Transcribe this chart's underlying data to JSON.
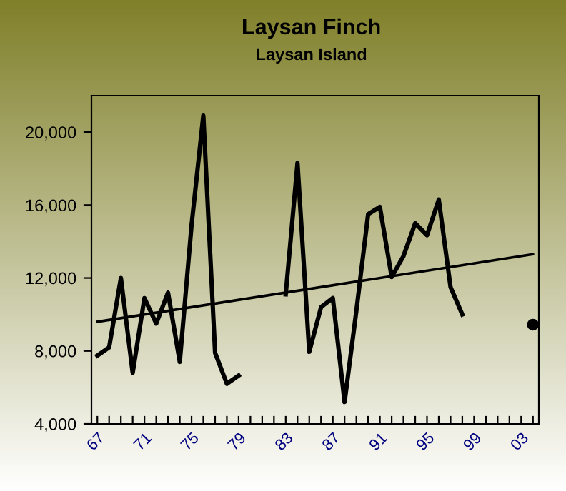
{
  "chart_data": {
    "type": "line",
    "title": "Laysan Finch",
    "subtitle": "Laysan Island",
    "x": [
      "1967",
      "1968",
      "1969",
      "1970",
      "1971",
      "1972",
      "1973",
      "1974",
      "1975",
      "1976",
      "1977",
      "1978",
      "1979",
      "1980",
      "1981",
      "1982",
      "1983",
      "1984",
      "1985",
      "1986",
      "1987",
      "1988",
      "1989",
      "1990",
      "1991",
      "1992",
      "1993",
      "1994",
      "1995",
      "1996",
      "1997",
      "1998"
    ],
    "series": [
      {
        "color": "#000000",
        "values": [
          7750,
          8200,
          12000,
          6800,
          10900,
          9500,
          11200,
          7400,
          14900,
          20900,
          7900,
          6200,
          6650,
          null,
          null,
          null,
          11100,
          18300,
          7950,
          10400,
          10900,
          5200,
          10200,
          15500,
          15900,
          12050,
          13200,
          15000,
          14350,
          16300,
          11500,
          10000
        ]
      },
      {
        "type": "line",
        "color": "#000000",
        "x": [
          "1967",
          "2004"
        ],
        "values": [
          9600,
          13300
        ]
      },
      {
        "type": "scatter",
        "color": "#000000",
        "x": [
          "2004"
        ],
        "values": [
          9440
        ],
        "marker": "circle"
      }
    ],
    "xticks": [
      {
        "value": "1967",
        "label": "67"
      },
      {
        "value": "1968",
        "label": null
      },
      {
        "value": "1969",
        "label": null
      },
      {
        "value": "1970",
        "label": null
      },
      {
        "value": "1971",
        "label": "71"
      },
      {
        "value": "1972",
        "label": null
      },
      {
        "value": "1973",
        "label": null
      },
      {
        "value": "1974",
        "label": null
      },
      {
        "value": "1975",
        "label": "75"
      },
      {
        "value": "1976",
        "label": null
      },
      {
        "value": "1977",
        "label": null
      },
      {
        "value": "1978",
        "label": null
      },
      {
        "value": "1979",
        "label": "79"
      },
      {
        "value": "1980",
        "label": null
      },
      {
        "value": "1981",
        "label": null
      },
      {
        "value": "1982",
        "label": null
      },
      {
        "value": "1983",
        "label": "83"
      },
      {
        "value": "1984",
        "label": null
      },
      {
        "value": "1985",
        "label": null
      },
      {
        "value": "1986",
        "label": null
      },
      {
        "value": "1987",
        "label": "87"
      },
      {
        "value": "1988",
        "label": null
      },
      {
        "value": "1989",
        "label": null
      },
      {
        "value": "1990",
        "label": null
      },
      {
        "value": "1991",
        "label": "91"
      },
      {
        "value": "1992",
        "label": null
      },
      {
        "value": "1993",
        "label": null
      },
      {
        "value": "1994",
        "label": null
      },
      {
        "value": "1995",
        "label": "95"
      },
      {
        "value": "1996",
        "label": null
      },
      {
        "value": "1997",
        "label": null
      },
      {
        "value": "1998",
        "label": null
      },
      {
        "value": "1999",
        "label": "99"
      },
      {
        "value": "2000",
        "label": null
      },
      {
        "value": "2001",
        "label": null
      },
      {
        "value": "2002",
        "label": null
      },
      {
        "value": "2003",
        "label": "03"
      },
      {
        "value": "2004",
        "label": null
      }
    ],
    "xlim": [
      "1966-07",
      "2004-07"
    ],
    "ylim": [
      4000,
      22000
    ],
    "yticks": [
      {
        "value": 4000,
        "label": "4,000"
      },
      {
        "value": 8000,
        "label": "8,000"
      },
      {
        "value": 12000,
        "label": "12,000"
      },
      {
        "value": 16000,
        "label": "16,000"
      },
      {
        "value": 20000,
        "label": "20,000"
      }
    ],
    "line_style": "solid"
  }
}
